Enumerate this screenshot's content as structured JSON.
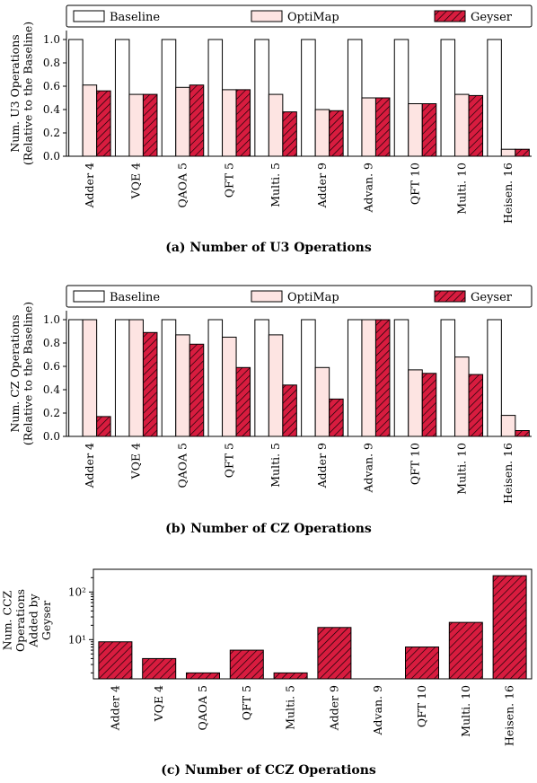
{
  "colors": {
    "baseline": "#ffffff",
    "optimap": "#fde4e2",
    "geyser": "#d81c3f",
    "edge": "#000000"
  },
  "legend": {
    "baseline": "Baseline",
    "optimap": "OptiMap",
    "geyser": "Geyser"
  },
  "chart_data": [
    {
      "type": "bar",
      "caption": "(a) Number of U3 Operations",
      "ylabel": [
        "Num. U3 Operations",
        "(Relative to the Baseline)"
      ],
      "ylim": [
        0,
        1.0
      ],
      "yticks": [
        "0.0",
        "0.2",
        "0.4",
        "0.6",
        "0.8",
        "1.0"
      ],
      "categories": [
        "Adder 4",
        "VQE 4",
        "QAOA 5",
        "QFT 5",
        "Multi. 5",
        "Adder 9",
        "Advan. 9",
        "QFT 10",
        "Multi. 10",
        "Heisen. 16"
      ],
      "series": [
        {
          "name": "Baseline",
          "values": [
            1.0,
            1.0,
            1.0,
            1.0,
            1.0,
            1.0,
            1.0,
            1.0,
            1.0,
            1.0
          ]
        },
        {
          "name": "OptiMap",
          "values": [
            0.61,
            0.53,
            0.59,
            0.57,
            0.53,
            0.4,
            0.5,
            0.45,
            0.53,
            0.06
          ]
        },
        {
          "name": "Geyser",
          "values": [
            0.56,
            0.53,
            0.61,
            0.57,
            0.38,
            0.39,
            0.5,
            0.45,
            0.52,
            0.06
          ]
        }
      ],
      "grid": false,
      "legend_position": "top"
    },
    {
      "type": "bar",
      "caption": "(b) Number of CZ Operations",
      "ylabel": [
        "Num. CZ Operations",
        "(Relative to the Baseline)"
      ],
      "ylim": [
        0,
        1.0
      ],
      "yticks": [
        "0.0",
        "0.2",
        "0.4",
        "0.6",
        "0.8",
        "1.0"
      ],
      "categories": [
        "Adder 4",
        "VQE 4",
        "QAOA 5",
        "QFT 5",
        "Multi. 5",
        "Adder 9",
        "Advan. 9",
        "QFT 10",
        "Multi. 10",
        "Heisen. 16"
      ],
      "series": [
        {
          "name": "Baseline",
          "values": [
            1.0,
            1.0,
            1.0,
            1.0,
            1.0,
            1.0,
            1.0,
            1.0,
            1.0,
            1.0
          ]
        },
        {
          "name": "OptiMap",
          "values": [
            1.0,
            1.0,
            0.87,
            0.85,
            0.87,
            0.59,
            1.0,
            0.57,
            0.68,
            0.18
          ]
        },
        {
          "name": "Geyser",
          "values": [
            0.17,
            0.89,
            0.79,
            0.59,
            0.44,
            0.32,
            1.0,
            0.54,
            0.53,
            0.05
          ]
        }
      ],
      "grid": false,
      "legend_position": "top"
    },
    {
      "type": "bar",
      "caption": "(c) Number of CCZ Operations",
      "ylabel": [
        "Num. CCZ",
        "Operations",
        "Added by",
        "Geyser"
      ],
      "yscale": "log",
      "yticks": [
        "10¹",
        "10²"
      ],
      "categories": [
        "Adder 4",
        "VQE 4",
        "QAOA 5",
        "QFT 5",
        "Multi. 5",
        "Adder 9",
        "Advan. 9",
        "QFT 10",
        "Multi. 10",
        "Heisen. 16"
      ],
      "series": [
        {
          "name": "Geyser",
          "values": [
            9,
            4,
            2,
            6,
            2,
            18,
            0,
            7,
            23,
            220
          ]
        }
      ],
      "grid": false
    }
  ]
}
